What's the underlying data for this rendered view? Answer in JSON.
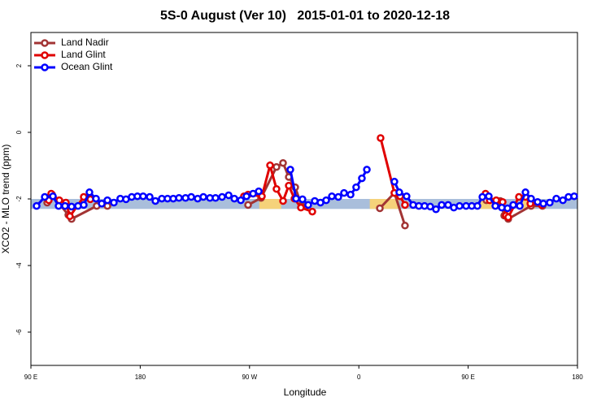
{
  "chart_data": {
    "type": "line",
    "title": "5S-0 August (Ver 10)   2015-01-01 to 2020-12-18",
    "x_label": "Longitude",
    "y_label": "XCO2 - MLO trend (ppm)",
    "xlim": [
      90,
      540
    ],
    "ylim": [
      -7,
      3
    ],
    "xticks": [
      {
        "value": 90,
        "label": "90 E"
      },
      180,
      {
        "value": 270,
        "label": "90 W"
      },
      {
        "value": 360,
        "label": "0"
      },
      {
        "value": 450,
        "label": "90 E"
      },
      {
        "value": 540,
        "label": "180"
      }
    ],
    "yticks": [
      2,
      0,
      -2,
      -4,
      -6
    ],
    "legend": "top-left",
    "background_band": {
      "ylim": [
        -2.3,
        -2.0
      ],
      "color": "#a9bedb"
    },
    "land_bands": {
      "color": "#f5d27a",
      "ranges": [
        [
          278,
          296
        ],
        [
          369,
          393
        ],
        [
          460,
          470
        ],
        [
          495,
          505
        ]
      ]
    },
    "series": [
      {
        "name": "Land Nadir",
        "color": "#a23434",
        "x": [
          103.4,
          107.4,
          120.8,
          123.5,
          144.2,
          153,
          200,
          268.8,
          279.5,
          292.2,
          297.6,
          302.3,
          307.6,
          313,
          340,
          377.3,
          389.3,
          398,
          430,
          465,
          476.4,
          479.7,
          483,
          501.8,
          511.2
        ],
        "values": [
          -2.11,
          -1.87,
          -2.48,
          -2.6,
          -2.21,
          -2.21,
          null,
          -2.18,
          -1.97,
          -1.04,
          -0.92,
          -1.34,
          -1.65,
          -2.21,
          null,
          -2.28,
          -1.82,
          -2.8,
          null,
          -2.04,
          -2.06,
          -2.5,
          -2.6,
          -2.21,
          -2.21
        ]
      },
      {
        "name": "Land Glint",
        "color": "#e00000",
        "x": [
          104.7,
          106.7,
          113.4,
          118.8,
          122.1,
          133.5,
          138.9,
          200,
          265.4,
          268.8,
          280.2,
          286.9,
          292.2,
          297.6,
          302.3,
          307,
          312.3,
          321.7,
          340,
          377.9,
          389.3,
          394,
          398,
          430,
          464.3,
          467.7,
          473.1,
          478.4,
          481.1,
          483,
          491.8,
          497.2,
          501.2,
          510.5
        ],
        "values": [
          -2.04,
          -1.84,
          -2.04,
          -2.11,
          -2.52,
          -1.94,
          -2.01,
          null,
          -1.92,
          -1.87,
          -1.92,
          -0.99,
          -1.7,
          -2.06,
          -1.6,
          -1.99,
          -2.26,
          -2.38,
          null,
          -0.17,
          -1.82,
          -1.92,
          -2.18,
          null,
          -1.84,
          -2.04,
          -2.04,
          -2.09,
          -2.5,
          -2.55,
          -1.94,
          -1.94,
          -2.14,
          -2.18
        ]
      },
      {
        "name": "Ocean Glint",
        "color": "#0000ff",
        "x": [
          94.7,
          101.4,
          108.1,
          112.8,
          118.1,
          123.5,
          128.8,
          133.5,
          138.2,
          143.6,
          148.3,
          153,
          158.3,
          163.6,
          168.3,
          173,
          177.7,
          182.4,
          187.8,
          192.5,
          197.8,
          202.5,
          207.2,
          211.9,
          217.3,
          222,
          227.3,
          232,
          237.4,
          242,
          247.4,
          252.8,
          257.5,
          262.8,
          267.5,
          272.9,
          277.6,
          290,
          303.6,
          308.3,
          313.6,
          318.3,
          323.7,
          328.4,
          333.1,
          337.8,
          343.1,
          347.8,
          353.2,
          357.8,
          362.5,
          366.6,
          378,
          389.3,
          393.3,
          399.3,
          404.7,
          409.4,
          414.1,
          418.8,
          423.5,
          428.2,
          433.5,
          438.2,
          442.9,
          448.3,
          453,
          457.6,
          461.7,
          467,
          472.4,
          477.7,
          482.4,
          487.1,
          492.5,
          497.2,
          501.8,
          507.2,
          511.9,
          517.2,
          522.6,
          528,
          532.6,
          537.3
        ],
        "values": [
          -2.21,
          -1.94,
          -1.92,
          -2.21,
          -2.21,
          -2.23,
          -2.21,
          -2.18,
          -1.8,
          -1.99,
          -2.14,
          -2.04,
          -2.11,
          -1.99,
          -2.01,
          -1.94,
          -1.92,
          -1.92,
          -1.94,
          -2.06,
          -1.99,
          -1.99,
          -1.99,
          -1.97,
          -1.97,
          -1.94,
          -1.99,
          -1.94,
          -1.97,
          -1.97,
          -1.94,
          -1.89,
          -1.99,
          -2.04,
          -1.92,
          -1.84,
          -1.77,
          null,
          -1.12,
          -1.99,
          -2.01,
          -2.18,
          -2.06,
          -2.11,
          -2.04,
          -1.92,
          -1.94,
          -1.82,
          -1.87,
          -1.65,
          -1.38,
          -1.12,
          null,
          -1.48,
          -1.8,
          -1.92,
          -2.18,
          -2.21,
          -2.21,
          -2.23,
          -2.31,
          -2.18,
          -2.18,
          -2.26,
          -2.21,
          -2.21,
          -2.21,
          -2.21,
          -1.94,
          -1.92,
          -2.21,
          -2.26,
          -2.28,
          -2.18,
          -2.21,
          -1.8,
          -1.99,
          -2.09,
          -2.14,
          -2.11,
          -1.99,
          -2.04,
          -1.94,
          -1.92
        ]
      }
    ]
  }
}
